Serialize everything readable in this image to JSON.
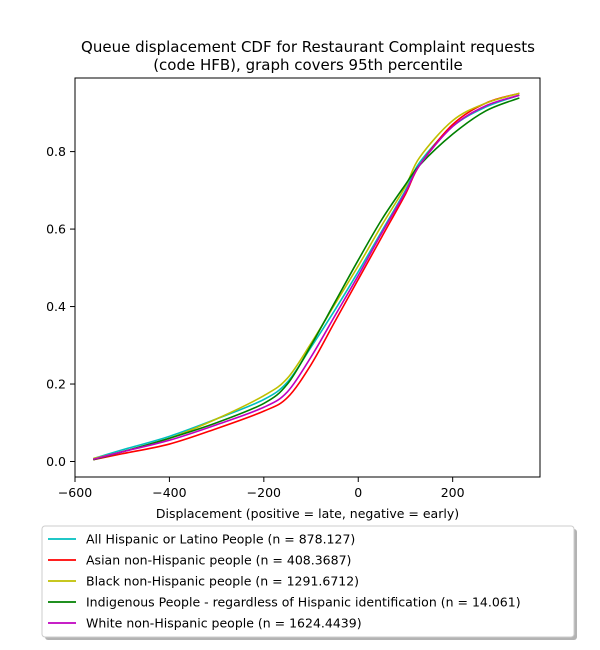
{
  "chart_data": {
    "type": "line",
    "title": [
      "Queue displacement CDF for Restaurant Complaint  requests",
      "(code HFB), graph covers 95th percentile"
    ],
    "xlabel": "Displacement (positive = late, negative = early)",
    "ylabel": "",
    "xlim": [
      -600,
      385
    ],
    "ylim": [
      -0.04,
      0.99
    ],
    "xticks": [
      -600,
      -400,
      -200,
      0,
      200
    ],
    "xtick_labels": [
      "−600",
      "−400",
      "−200",
      "0",
      "200"
    ],
    "yticks": [
      0.0,
      0.2,
      0.4,
      0.6,
      0.8
    ],
    "ytick_labels": [
      "0.0",
      "0.2",
      "0.4",
      "0.6",
      "0.8"
    ],
    "grid": false,
    "legend_position": "below",
    "series": [
      {
        "name": "All Hispanic or Latino People (n = 878.127)",
        "color": "#00bfbf",
        "x": [
          -560,
          -500,
          -400,
          -300,
          -200,
          -150,
          -100,
          -50,
          0,
          50,
          100,
          130,
          200,
          270,
          340
        ],
        "y": [
          0.008,
          0.03,
          0.065,
          0.11,
          0.16,
          0.205,
          0.295,
          0.39,
          0.49,
          0.595,
          0.7,
          0.772,
          0.865,
          0.915,
          0.945
        ]
      },
      {
        "name": "Asian non-Hispanic people (n = 408.3687)",
        "color": "#ff0000",
        "x": [
          -560,
          -500,
          -400,
          -300,
          -200,
          -150,
          -100,
          -50,
          0,
          50,
          100,
          130,
          200,
          270,
          340
        ],
        "y": [
          0.005,
          0.02,
          0.045,
          0.085,
          0.13,
          0.165,
          0.25,
          0.36,
          0.47,
          0.58,
          0.69,
          0.765,
          0.87,
          0.925,
          0.95
        ]
      },
      {
        "name": "Black non-Hispanic people (n = 1291.6712)",
        "color": "#bfbf00",
        "x": [
          -560,
          -500,
          -400,
          -300,
          -200,
          -150,
          -100,
          -50,
          0,
          50,
          100,
          130,
          200,
          270,
          340
        ],
        "y": [
          0.008,
          0.025,
          0.06,
          0.11,
          0.17,
          0.215,
          0.305,
          0.405,
          0.505,
          0.61,
          0.71,
          0.785,
          0.88,
          0.925,
          0.95
        ]
      },
      {
        "name": "Indigenous People - regardless of Hispanic identification (n = 14.061)",
        "color": "#008000",
        "x": [
          -560,
          -500,
          -400,
          -300,
          -200,
          -150,
          -100,
          -50,
          0,
          50,
          100,
          130,
          200,
          270,
          340
        ],
        "y": [
          0.005,
          0.025,
          0.06,
          0.1,
          0.15,
          0.2,
          0.3,
          0.41,
          0.52,
          0.625,
          0.715,
          0.765,
          0.845,
          0.905,
          0.938
        ]
      },
      {
        "name": "White non-Hispanic people (n = 1624.4439)",
        "color": "#bf00bf",
        "x": [
          -560,
          -500,
          -400,
          -300,
          -200,
          -150,
          -100,
          -50,
          0,
          50,
          100,
          130,
          200,
          270,
          340
        ],
        "y": [
          0.006,
          0.025,
          0.055,
          0.095,
          0.14,
          0.18,
          0.27,
          0.375,
          0.48,
          0.59,
          0.695,
          0.765,
          0.865,
          0.918,
          0.945
        ]
      }
    ]
  }
}
